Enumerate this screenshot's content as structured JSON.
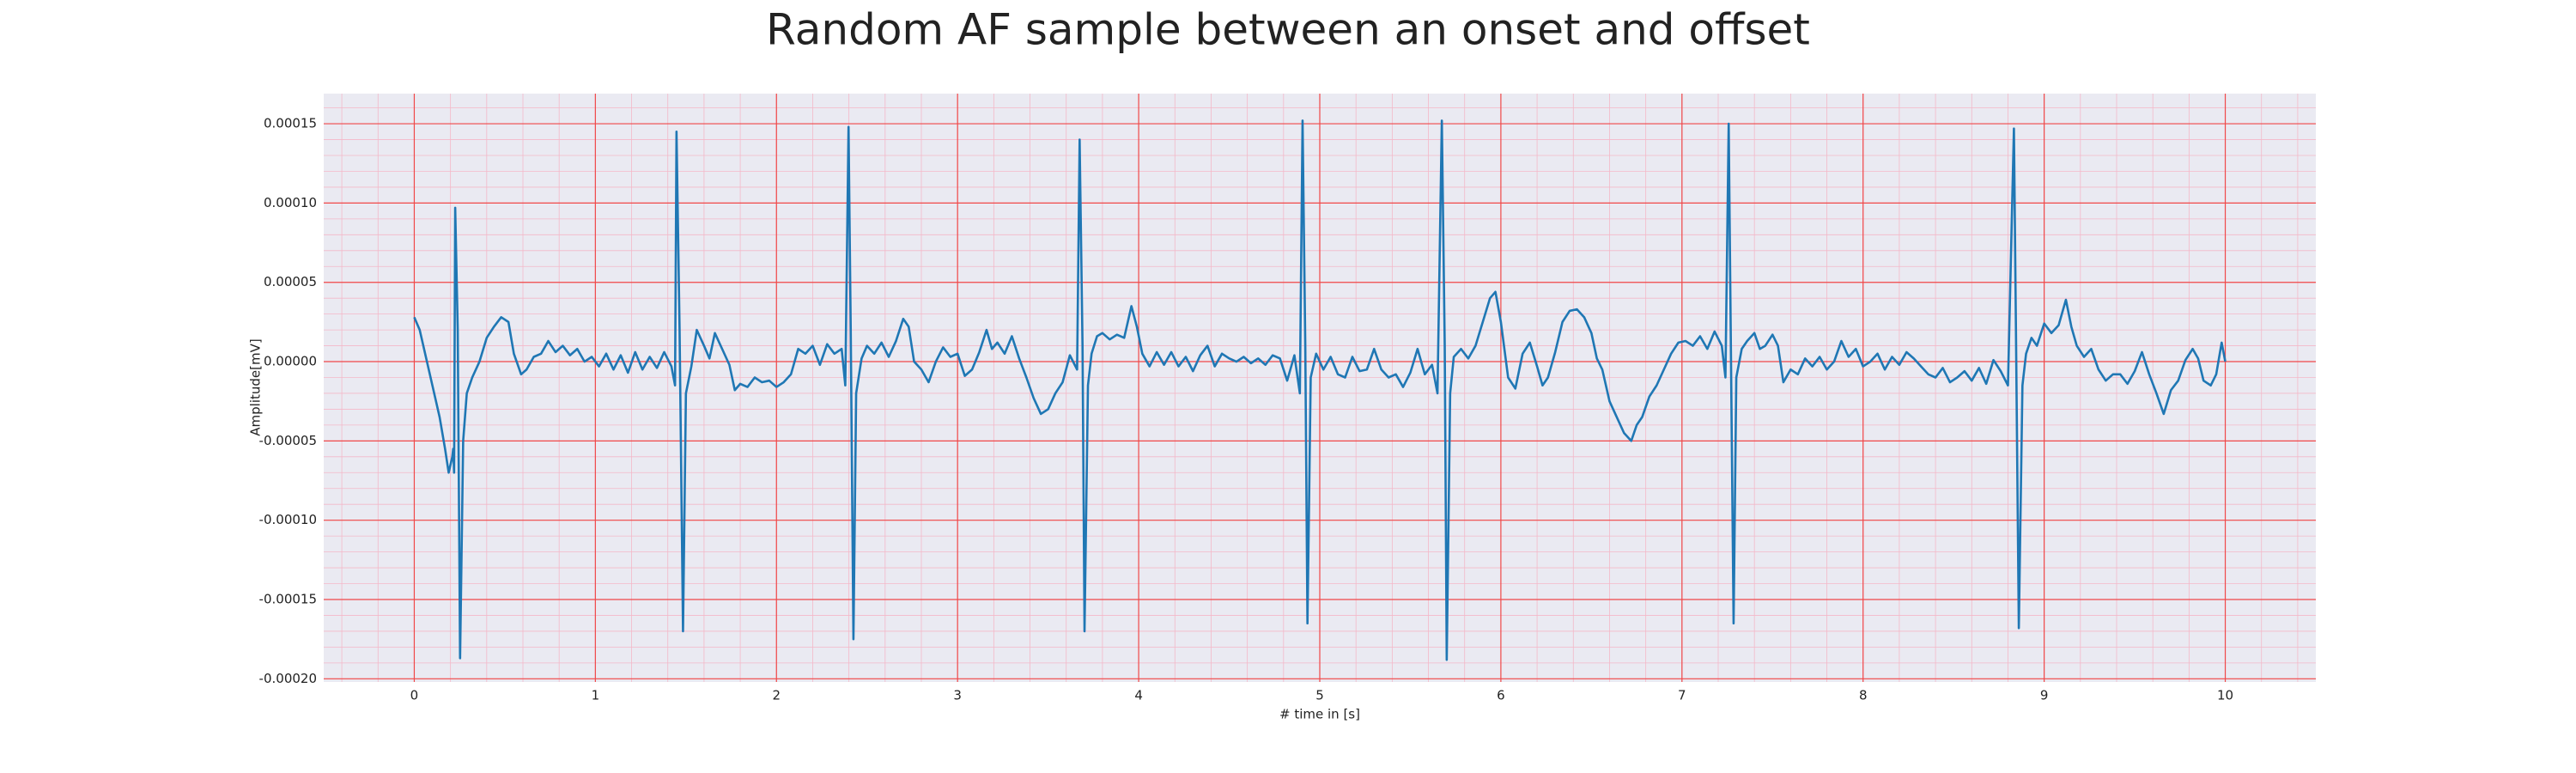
{
  "chart_data": {
    "type": "line",
    "title": "Random AF sample between an onset and offset",
    "x_label": "# time in [s]",
    "y_label": "Amplitude[mV]",
    "color": "#1f77b4",
    "grid": true,
    "minor_grid": true,
    "xlim": [
      -0.5,
      10.5
    ],
    "ylim": [
      -0.000202,
      0.000169
    ],
    "xticks": [
      0,
      1,
      2,
      3,
      4,
      5,
      6,
      7,
      8,
      9,
      10
    ],
    "yticks": [
      {
        "value": -0.0002,
        "label": "-0.00020"
      },
      {
        "value": -0.00015,
        "label": "-0.00015"
      },
      {
        "value": -0.0001,
        "label": "-0.00010"
      },
      {
        "value": -5e-05,
        "label": "-0.00005"
      },
      {
        "value": 0,
        "label": "0.00000"
      },
      {
        "value": 5e-05,
        "label": "0.00005"
      },
      {
        "value": 0.0001,
        "label": "0.00010"
      },
      {
        "value": 0.00015,
        "label": "0.00015"
      }
    ],
    "x": [
      0.0,
      0.03,
      0.06,
      0.1,
      0.14,
      0.17,
      0.19,
      0.21,
      0.215,
      0.22,
      0.226,
      0.24,
      0.253,
      0.27,
      0.29,
      0.32,
      0.36,
      0.4,
      0.44,
      0.48,
      0.52,
      0.55,
      0.59,
      0.62,
      0.66,
      0.7,
      0.74,
      0.78,
      0.82,
      0.86,
      0.9,
      0.94,
      0.98,
      1.02,
      1.06,
      1.1,
      1.14,
      1.18,
      1.22,
      1.26,
      1.3,
      1.34,
      1.38,
      1.42,
      1.44,
      1.448,
      1.465,
      1.484,
      1.5,
      1.53,
      1.56,
      1.6,
      1.63,
      1.66,
      1.7,
      1.74,
      1.77,
      1.8,
      1.84,
      1.88,
      1.92,
      1.96,
      2.0,
      2.04,
      2.08,
      2.12,
      2.16,
      2.2,
      2.24,
      2.28,
      2.32,
      2.36,
      2.38,
      2.398,
      2.41,
      2.425,
      2.44,
      2.47,
      2.5,
      2.54,
      2.58,
      2.62,
      2.66,
      2.7,
      2.73,
      2.76,
      2.8,
      2.84,
      2.88,
      2.92,
      2.96,
      3.0,
      3.04,
      3.08,
      3.12,
      3.16,
      3.19,
      3.22,
      3.26,
      3.3,
      3.34,
      3.38,
      3.42,
      3.46,
      3.5,
      3.54,
      3.58,
      3.62,
      3.66,
      3.674,
      3.69,
      3.701,
      3.72,
      3.74,
      3.77,
      3.8,
      3.84,
      3.88,
      3.92,
      3.96,
      3.99,
      4.02,
      4.06,
      4.1,
      4.14,
      4.18,
      4.22,
      4.26,
      4.3,
      4.34,
      4.38,
      4.42,
      4.46,
      4.5,
      4.54,
      4.58,
      4.62,
      4.66,
      4.7,
      4.74,
      4.78,
      4.82,
      4.86,
      4.89,
      4.905,
      4.92,
      4.932,
      4.95,
      4.98,
      5.02,
      5.06,
      5.1,
      5.14,
      5.18,
      5.22,
      5.26,
      5.3,
      5.34,
      5.38,
      5.42,
      5.46,
      5.5,
      5.54,
      5.58,
      5.62,
      5.65,
      5.674,
      5.69,
      5.701,
      5.72,
      5.74,
      5.78,
      5.82,
      5.86,
      5.9,
      5.94,
      5.97,
      6.0,
      6.04,
      6.08,
      6.12,
      6.16,
      6.2,
      6.23,
      6.26,
      6.3,
      6.34,
      6.38,
      6.42,
      6.46,
      6.5,
      6.53,
      6.56,
      6.6,
      6.64,
      6.68,
      6.72,
      6.75,
      6.78,
      6.82,
      6.86,
      6.9,
      6.94,
      6.98,
      7.02,
      7.06,
      7.1,
      7.14,
      7.18,
      7.22,
      7.24,
      7.258,
      7.27,
      7.285,
      7.3,
      7.33,
      7.36,
      7.4,
      7.43,
      7.46,
      7.5,
      7.53,
      7.56,
      7.6,
      7.64,
      7.68,
      7.72,
      7.76,
      7.8,
      7.84,
      7.88,
      7.92,
      7.96,
      8.0,
      8.04,
      8.08,
      8.12,
      8.16,
      8.2,
      8.24,
      8.28,
      8.32,
      8.36,
      8.4,
      8.44,
      8.48,
      8.52,
      8.56,
      8.6,
      8.64,
      8.68,
      8.72,
      8.76,
      8.8,
      8.833,
      8.845,
      8.86,
      8.88,
      8.9,
      8.93,
      8.96,
      9.0,
      9.04,
      9.08,
      9.12,
      9.15,
      9.18,
      9.22,
      9.26,
      9.3,
      9.34,
      9.38,
      9.42,
      9.46,
      9.5,
      9.54,
      9.58,
      9.62,
      9.66,
      9.7,
      9.74,
      9.78,
      9.82,
      9.85,
      9.88,
      9.92,
      9.95,
      9.98,
      10.0
    ],
    "values": [
      2.8e-05,
      2e-05,
      5e-06,
      -1.5e-05,
      -3.5e-05,
      -5.5e-05,
      -7e-05,
      -6e-05,
      -5.5e-05,
      -7e-05,
      9.7e-05,
      2e-05,
      -0.000187,
      -5e-05,
      -2e-05,
      -1e-05,
      0,
      1.5e-05,
      2.2e-05,
      2.8e-05,
      2.5e-05,
      5e-06,
      -8e-06,
      -5e-06,
      3e-06,
      5e-06,
      1.3e-05,
      6e-06,
      1e-05,
      4e-06,
      8e-06,
      0,
      3e-06,
      -3e-06,
      5e-06,
      -5e-06,
      4e-06,
      -7e-06,
      6e-06,
      -5e-06,
      3e-06,
      -4e-06,
      6e-06,
      -3e-06,
      -1.5e-05,
      0.000145,
      2e-05,
      -0.00017,
      -2e-05,
      -3e-06,
      2e-05,
      1e-05,
      2e-06,
      1.8e-05,
      8e-06,
      -2e-06,
      -1.8e-05,
      -1.4e-05,
      -1.6e-05,
      -1e-05,
      -1.3e-05,
      -1.2e-05,
      -1.6e-05,
      -1.3e-05,
      -8e-06,
      8e-06,
      5e-06,
      1e-05,
      -2e-06,
      1.1e-05,
      5e-06,
      8e-06,
      -1.5e-05,
      0.000148,
      2e-05,
      -0.000175,
      -2e-05,
      2e-06,
      1e-05,
      5e-06,
      1.2e-05,
      3e-06,
      1.3e-05,
      2.7e-05,
      2.2e-05,
      0,
      -5e-06,
      -1.3e-05,
      0,
      9e-06,
      3e-06,
      5e-06,
      -9e-06,
      -5e-06,
      6e-06,
      2e-05,
      8e-06,
      1.2e-05,
      5e-06,
      1.6e-05,
      2e-06,
      -1e-05,
      -2.3e-05,
      -3.3e-05,
      -3e-05,
      -2e-05,
      -1.3e-05,
      4e-06,
      -5e-06,
      0.00014,
      1e-05,
      -0.00017,
      -1.5e-05,
      5e-06,
      1.6e-05,
      1.8e-05,
      1.4e-05,
      1.7e-05,
      1.5e-05,
      3.5e-05,
      2.2e-05,
      5e-06,
      -3e-06,
      6e-06,
      -2e-06,
      6e-06,
      -3e-06,
      3e-06,
      -6e-06,
      4e-06,
      1e-05,
      -3e-06,
      5e-06,
      2e-06,
      0,
      3e-06,
      -1e-06,
      2e-06,
      -2e-06,
      4e-06,
      2e-06,
      -1.2e-05,
      4e-06,
      -2e-05,
      0.000152,
      1e-05,
      -0.000165,
      -1e-05,
      5e-06,
      -5e-06,
      3e-06,
      -8e-06,
      -1e-05,
      3e-06,
      -6e-06,
      -5e-06,
      8e-06,
      -5e-06,
      -1e-05,
      -8e-06,
      -1.6e-05,
      -7e-06,
      8e-06,
      -8e-06,
      -2e-06,
      -2e-05,
      0.000152,
      1e-05,
      -0.000188,
      -2e-05,
      3e-06,
      8e-06,
      2e-06,
      1e-05,
      2.5e-05,
      4e-05,
      4.4e-05,
      2.5e-05,
      -1e-05,
      -1.7e-05,
      5e-06,
      1.2e-05,
      -3e-06,
      -1.5e-05,
      -1e-05,
      6e-06,
      2.5e-05,
      3.2e-05,
      3.3e-05,
      2.8e-05,
      1.8e-05,
      2e-06,
      -5e-06,
      -2.5e-05,
      -3.5e-05,
      -4.5e-05,
      -5e-05,
      -4e-05,
      -3.5e-05,
      -2.2e-05,
      -1.5e-05,
      -5e-06,
      5e-06,
      1.2e-05,
      1.3e-05,
      1e-05,
      1.6e-05,
      8e-06,
      1.9e-05,
      1e-05,
      -1e-05,
      0.00015,
      1e-05,
      -0.000165,
      -1e-05,
      8e-06,
      1.3e-05,
      1.8e-05,
      8e-06,
      1e-05,
      1.7e-05,
      1e-05,
      -1.3e-05,
      -5e-06,
      -8e-06,
      2e-06,
      -3e-06,
      3e-06,
      -5e-06,
      0,
      1.3e-05,
      3e-06,
      8e-06,
      -3e-06,
      0,
      5e-06,
      -5e-06,
      3e-06,
      -2e-06,
      6e-06,
      2e-06,
      -3e-06,
      -8e-06,
      -1e-05,
      -4e-06,
      -1.3e-05,
      -1e-05,
      -6e-06,
      -1.2e-05,
      -4e-06,
      -1.4e-05,
      1e-06,
      -6e-06,
      -1.5e-05,
      0.000147,
      1e-05,
      -0.000168,
      -1.5e-05,
      5e-06,
      1.5e-05,
      1e-05,
      2.4e-05,
      1.8e-05,
      2.3e-05,
      3.9e-05,
      2.2e-05,
      1e-05,
      3e-06,
      8e-06,
      -5e-06,
      -1.2e-05,
      -8e-06,
      -8e-06,
      -1.4e-05,
      -6e-06,
      6e-06,
      -8e-06,
      -2e-05,
      -3.3e-05,
      -1.8e-05,
      -1.2e-05,
      1e-06,
      8e-06,
      2e-06,
      -1.2e-05,
      -1.5e-05,
      -8e-06,
      1.2e-05,
      0
    ]
  }
}
